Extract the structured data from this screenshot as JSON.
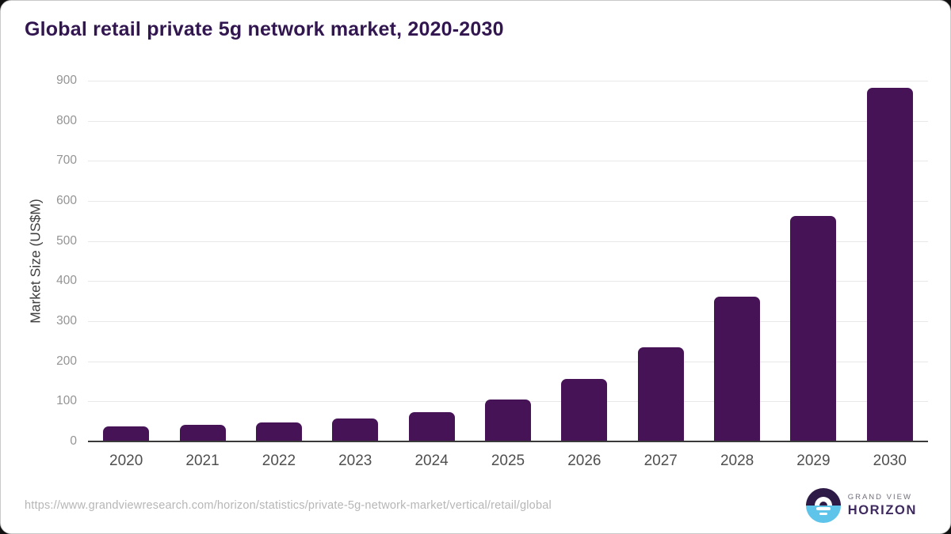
{
  "chart_data": {
    "type": "bar",
    "title": "Global retail private 5g network market, 2020-2030",
    "categories": [
      "2020",
      "2021",
      "2022",
      "2023",
      "2024",
      "2025",
      "2026",
      "2027",
      "2028",
      "2029",
      "2030"
    ],
    "values": [
      37,
      41,
      47,
      57,
      74,
      105,
      156,
      235,
      361,
      563,
      882
    ],
    "xlabel": "",
    "ylabel": "Market Size (US$M)",
    "ylim": [
      0,
      900
    ],
    "yticks": [
      0,
      100,
      200,
      300,
      400,
      500,
      600,
      700,
      800,
      900
    ],
    "grid": true,
    "legend_position": "none",
    "bar_color": "#451356",
    "gridline_color": "#e8e8e8",
    "axis_color": "#3a3a3a"
  },
  "footer": {
    "source_url": "https://www.grandviewresearch.com/horizon/statistics/private-5g-network-market/vertical/retail/global",
    "logo_line1": "GRAND VIEW",
    "logo_line2": "HORIZON"
  },
  "colors": {
    "title": "#321650",
    "y_tick_label": "#949494",
    "x_tick_label": "#4f4f4f",
    "url_text": "#b6b6b6",
    "logo_purple": "#2d1a47",
    "logo_blue": "#5ec4ea",
    "logo_text_gray": "#716d7a",
    "logo_text_purple": "#3e2a5f"
  }
}
